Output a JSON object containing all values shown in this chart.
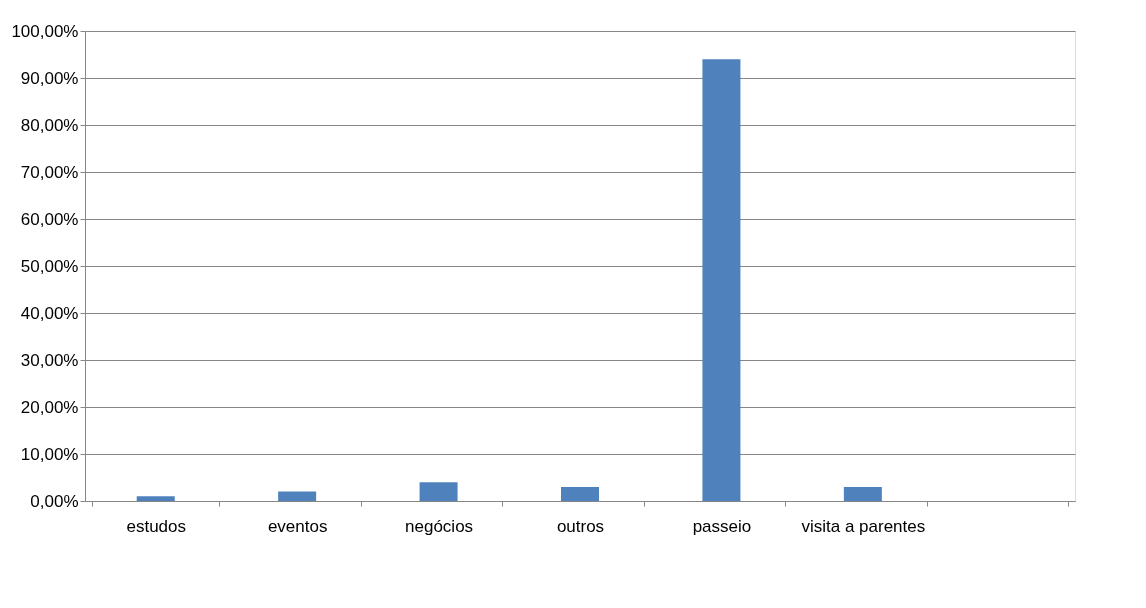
{
  "chart_data": {
    "type": "bar",
    "categories": [
      "estudos",
      "eventos",
      "negócios",
      "outros",
      "passeio",
      "visita a parentes",
      null
    ],
    "values": [
      1,
      2,
      4,
      3,
      94,
      3,
      null
    ],
    "color": "#4f81bd",
    "ylim": [
      0,
      100
    ],
    "yticks": [
      {
        "value": 0,
        "label": "0,00%"
      },
      {
        "value": 10,
        "label": "10,00%"
      },
      {
        "value": 20,
        "label": "20,00%"
      },
      {
        "value": 30,
        "label": "30,00%"
      },
      {
        "value": 40,
        "label": "40,00%"
      },
      {
        "value": 50,
        "label": "50,00%"
      },
      {
        "value": 60,
        "label": "60,00%"
      },
      {
        "value": 70,
        "label": "70,00%"
      },
      {
        "value": 80,
        "label": "80,00%"
      },
      {
        "value": 90,
        "label": "90,00%"
      },
      {
        "value": 100,
        "label": "100,00%"
      }
    ],
    "grid": "y"
  }
}
